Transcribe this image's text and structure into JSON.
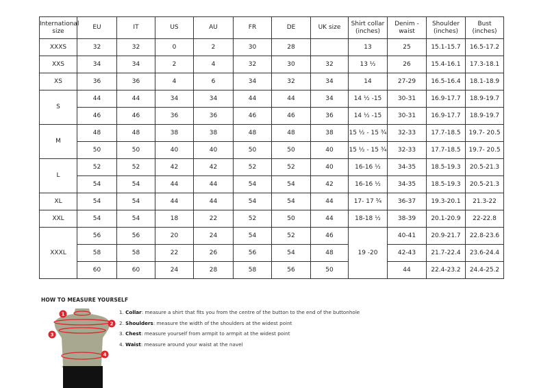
{
  "table": {
    "headers": [
      "International size",
      "EU",
      "IT",
      "US",
      "AU",
      "FR",
      "DE",
      "UK size",
      "Shirt collar (inches)",
      "Denim - waist",
      "Shoulder (inches)",
      "Bust (inches)"
    ],
    "groups": [
      {
        "size": "XXXS",
        "rows": [
          [
            "32",
            "32",
            "0",
            "2",
            "30",
            "28",
            "",
            "13",
            "25",
            "15.1-15.7",
            "16.5-17.2"
          ]
        ]
      },
      {
        "size": "XXS",
        "rows": [
          [
            "34",
            "34",
            "2",
            "4",
            "32",
            "30",
            "32",
            "13 ½",
            "26",
            "15.4-16.1",
            "17.3-18.1"
          ]
        ]
      },
      {
        "size": "XS",
        "rows": [
          [
            "36",
            "36",
            "4",
            "6",
            "34",
            "32",
            "34",
            "14",
            "27-29",
            "16.5-16.4",
            "18.1-18.9"
          ]
        ]
      },
      {
        "size": "S",
        "rows": [
          [
            "44",
            "44",
            "34",
            "34",
            "44",
            "44",
            "34",
            "14 ½ -15",
            "30-31",
            "16.9-17.7",
            "18.9-19.7"
          ],
          [
            "46",
            "46",
            "36",
            "36",
            "46",
            "46",
            "36",
            "14 ½ -15",
            "30-31",
            "16.9-17.7",
            "18.9-19.7"
          ]
        ]
      },
      {
        "size": "M",
        "rows": [
          [
            "48",
            "48",
            "38",
            "38",
            "48",
            "48",
            "38",
            "15 ½ - 15 ¾",
            "32-33",
            "17.7-18.5",
            "19.7- 20.5"
          ],
          [
            "50",
            "50",
            "40",
            "40",
            "50",
            "50",
            "40",
            "15 ½ - 15 ¾",
            "32-33",
            "17.7-18.5",
            "19.7- 20.5"
          ]
        ]
      },
      {
        "size": "L",
        "rows": [
          [
            "52",
            "52",
            "42",
            "42",
            "52",
            "52",
            "40",
            "16-16 ½",
            "34-35",
            "18.5-19.3",
            "20.5-21.3"
          ],
          [
            "54",
            "54",
            "44",
            "44",
            "54",
            "54",
            "42",
            "16-16 ½",
            "34-35",
            "18.5-19.3",
            "20.5-21.3"
          ]
        ]
      },
      {
        "size": "XL",
        "rows": [
          [
            "54",
            "54",
            "44",
            "44",
            "54",
            "54",
            "44",
            "17- 17 ¾",
            "36-37",
            "19.3-20.1",
            "21.3-22"
          ]
        ]
      },
      {
        "size": "XXL",
        "rows": [
          [
            "54",
            "54",
            "18",
            "22",
            "52",
            "50",
            "44",
            "18-18 ½",
            "38-39",
            "20.1-20.9",
            "22-22.8"
          ]
        ]
      },
      {
        "size": "XXXL",
        "collar": "19 -20",
        "rows": [
          [
            "56",
            "56",
            "20",
            "24",
            "54",
            "52",
            "46",
            null,
            "40-41",
            "20.9-21.7",
            "22.8-23.6"
          ],
          [
            "58",
            "58",
            "22",
            "26",
            "56",
            "54",
            "48",
            null,
            "42-43",
            "21.7-22.4",
            "23.6-24.4"
          ],
          [
            "60",
            "60",
            "24",
            "28",
            "58",
            "56",
            "50",
            null,
            "44",
            "22.4-23.2",
            "24.4-25.2"
          ]
        ]
      }
    ]
  },
  "measure": {
    "title": "HOW TO MEASURE YOURSELF",
    "markers": [
      "1",
      "2",
      "3",
      "4"
    ],
    "accent": "#e0232b",
    "steps": [
      {
        "num": "1.",
        "term": "Collar",
        "text": ": measure a shirt that fits you from the centre of the button to the end of the buttonhole"
      },
      {
        "num": "2.",
        "term": "Shoulders",
        "text": ": measure the width of the shoulders at the widest point"
      },
      {
        "num": "3.",
        "term": "Chest",
        "text": ": measure yourself from armpit to armpit at the widest point"
      },
      {
        "num": "4.",
        "term": "Waist",
        "text": ": measure around your waist at the navel"
      }
    ]
  }
}
